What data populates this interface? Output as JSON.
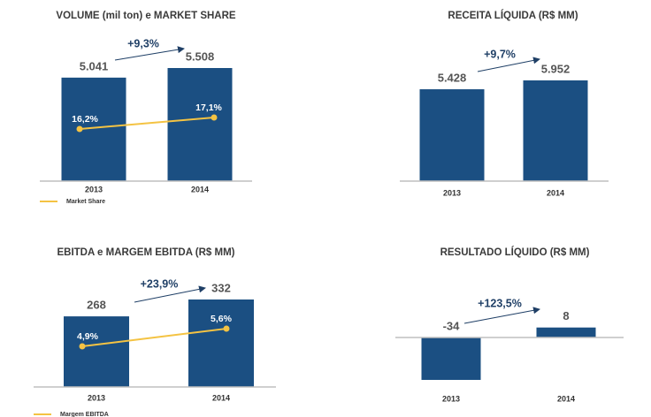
{
  "chart_data": [
    {
      "type": "bar",
      "title": "VOLUME (mil ton) e MARKET SHARE",
      "categories": [
        "2013",
        "2014"
      ],
      "values": [
        5041,
        5508
      ],
      "value_labels": [
        "5.041",
        "5.508"
      ],
      "color": "#1b4f82",
      "growth_label": "+9,3%",
      "line_series": {
        "name": "Market Share",
        "color": "#f4c343",
        "values": [
          16.2,
          17.1
        ],
        "value_labels": [
          "16,2%",
          "17,1%"
        ]
      }
    },
    {
      "type": "bar",
      "title": "RECEITA LÍQUIDA (R$ MM)",
      "categories": [
        "2013",
        "2014"
      ],
      "values": [
        5428,
        5952
      ],
      "value_labels": [
        "5.428",
        "5.952"
      ],
      "color": "#1b4f82",
      "growth_label": "+9,7%"
    },
    {
      "type": "bar",
      "title": "EBITDA e MARGEM EBITDA (R$ MM)",
      "categories": [
        "2013",
        "2014"
      ],
      "values": [
        268,
        332
      ],
      "color": "#1b4f82",
      "growth_label": "+23,9%",
      "line_series": {
        "name": "Margem EBITDA",
        "color": "#f4c343",
        "values": [
          4.9,
          5.6
        ],
        "value_labels": [
          "4,9%",
          "5,6%"
        ]
      }
    },
    {
      "type": "bar",
      "title": "RESULTADO LÍQUIDO (R$ MM)",
      "categories": [
        "2013",
        "2014"
      ],
      "values": [
        -34,
        8
      ],
      "color": "#1b4f82",
      "growth_label": "+123,5%"
    }
  ]
}
